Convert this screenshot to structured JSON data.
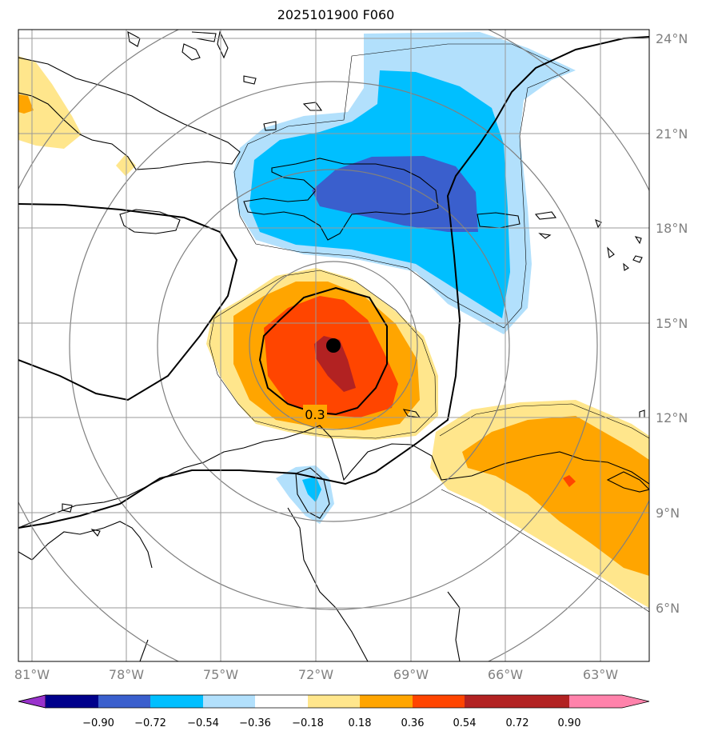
{
  "title": "2025101900 F060",
  "lat_labels": [
    "24°N",
    "21°N",
    "18°N",
    "15°N",
    "12°N",
    "9°N",
    "6°N"
  ],
  "lon_labels": [
    "81°W",
    "78°W",
    "75°W",
    "72°W",
    "69°W",
    "66°W",
    "63°W"
  ],
  "contour_label": "0.3",
  "colorbar": {
    "ticks": [
      "−0.90",
      "−0.72",
      "−0.54",
      "−0.36",
      "−0.18",
      "0.18",
      "0.36",
      "0.54",
      "0.72",
      "0.90"
    ],
    "colors": [
      "#9932cc",
      "#00008b",
      "#3a5fcd",
      "#00bfff",
      "#b2e0fc",
      "#ffffff",
      "#ffe68c",
      "#ffa500",
      "#ff4500",
      "#b22222",
      "#ff82ab"
    ]
  },
  "colors": {
    "grid": "#9a9a9a",
    "range_rings": "#808080",
    "coast": "#000000"
  },
  "center_marker": "storm-center-dot"
}
